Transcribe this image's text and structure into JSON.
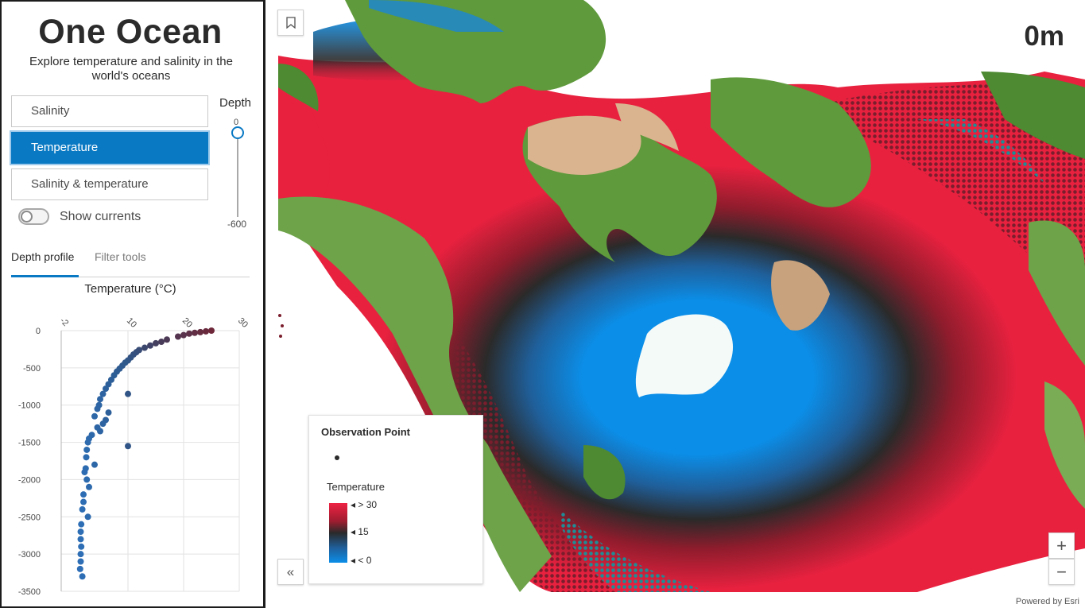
{
  "app": {
    "title": "One Ocean",
    "subtitle": "Explore temperature and salinity in the world's oceans"
  },
  "variables": {
    "options": [
      "Salinity",
      "Temperature",
      "Salinity & temperature"
    ],
    "selected": "Temperature"
  },
  "depth_slider": {
    "label": "Depth",
    "top_value": "0",
    "bottom_value": "-600",
    "current": 0
  },
  "currents_toggle": {
    "label": "Show currents",
    "on": false
  },
  "tabs": {
    "items": [
      "Depth profile",
      "Filter tools"
    ],
    "active": "Depth profile"
  },
  "chart_data": {
    "type": "scatter",
    "title": "Temperature (°C)",
    "xlabel": "Temperature (°C)",
    "ylabel": "",
    "x_ticks": [
      "-2",
      "10",
      "20",
      "30"
    ],
    "y_ticks": [
      "0",
      "-500",
      "-1000",
      "-1500",
      "-2000",
      "-2500",
      "-3000",
      "-3500"
    ],
    "xlim": [
      -2,
      30
    ],
    "ylim": [
      -3500,
      0
    ],
    "grid": true,
    "points": [
      {
        "x": 25,
        "y": 0
      },
      {
        "x": 24,
        "y": -10
      },
      {
        "x": 23,
        "y": -20
      },
      {
        "x": 22,
        "y": -30
      },
      {
        "x": 21,
        "y": -40
      },
      {
        "x": 20,
        "y": -60
      },
      {
        "x": 19,
        "y": -80
      },
      {
        "x": 17,
        "y": -120
      },
      {
        "x": 16,
        "y": -150
      },
      {
        "x": 15,
        "y": -170
      },
      {
        "x": 14,
        "y": -200
      },
      {
        "x": 13,
        "y": -230
      },
      {
        "x": 12,
        "y": -260
      },
      {
        "x": 11.5,
        "y": -290
      },
      {
        "x": 11,
        "y": -320
      },
      {
        "x": 10.5,
        "y": -360
      },
      {
        "x": 10,
        "y": -400
      },
      {
        "x": 9.5,
        "y": -430
      },
      {
        "x": 9,
        "y": -470
      },
      {
        "x": 8.5,
        "y": -510
      },
      {
        "x": 8,
        "y": -550
      },
      {
        "x": 7.5,
        "y": -600
      },
      {
        "x": 7,
        "y": -660
      },
      {
        "x": 6.5,
        "y": -720
      },
      {
        "x": 6,
        "y": -780
      },
      {
        "x": 10,
        "y": -850
      },
      {
        "x": 5.5,
        "y": -850
      },
      {
        "x": 5,
        "y": -920
      },
      {
        "x": 4.8,
        "y": -1000
      },
      {
        "x": 4.5,
        "y": -1050
      },
      {
        "x": 6.5,
        "y": -1100
      },
      {
        "x": 4,
        "y": -1150
      },
      {
        "x": 6,
        "y": -1200
      },
      {
        "x": 5.5,
        "y": -1250
      },
      {
        "x": 4.5,
        "y": -1300
      },
      {
        "x": 5,
        "y": -1350
      },
      {
        "x": 3.5,
        "y": -1400
      },
      {
        "x": 3,
        "y": -1450
      },
      {
        "x": 2.8,
        "y": -1500
      },
      {
        "x": 10,
        "y": -1550
      },
      {
        "x": 2.6,
        "y": -1600
      },
      {
        "x": 2.5,
        "y": -1700
      },
      {
        "x": 4,
        "y": -1800
      },
      {
        "x": 2.4,
        "y": -1850
      },
      {
        "x": 2.2,
        "y": -1900
      },
      {
        "x": 2.6,
        "y": -2000
      },
      {
        "x": 3,
        "y": -2100
      },
      {
        "x": 2,
        "y": -2200
      },
      {
        "x": 2,
        "y": -2300
      },
      {
        "x": 1.8,
        "y": -2400
      },
      {
        "x": 2.8,
        "y": -2500
      },
      {
        "x": 1.6,
        "y": -2600
      },
      {
        "x": 1.5,
        "y": -2700
      },
      {
        "x": 1.5,
        "y": -2800
      },
      {
        "x": 1.6,
        "y": -2900
      },
      {
        "x": 1.5,
        "y": -3000
      },
      {
        "x": 1.5,
        "y": -3100
      },
      {
        "x": 1.4,
        "y": -3200
      },
      {
        "x": 1.8,
        "y": -3300
      }
    ]
  },
  "map": {
    "depth_readout": "0m",
    "legend": {
      "layer_title": "Observation Point",
      "field": "Temperature",
      "stops": [
        "> 30",
        "15",
        "< 0"
      ]
    },
    "attribution": "Powered by Esri",
    "colors": {
      "warm": "#e8213f",
      "mid": "#2a2a2a",
      "cold": "#0b8ee8",
      "land_green": "#5f9a3c",
      "desert": "#d9b48f",
      "ice": "#f4faf8"
    }
  },
  "icons": {
    "bookmark": "bookmark-icon",
    "collapse": "double-chevron-left-icon",
    "zoom_in": "plus-icon",
    "zoom_out": "minus-icon"
  }
}
